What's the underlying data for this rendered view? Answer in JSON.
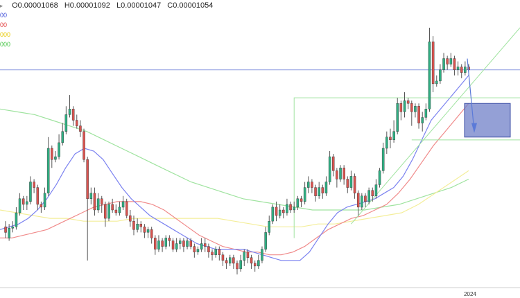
{
  "header": {
    "open_label": "O",
    "open": "0.00001068",
    "high_label": "H",
    "high": "0.00001092",
    "low_label": "L",
    "low": "0.00001047",
    "close_label": "C",
    "close": "0.00001054"
  },
  "legend_lines": [
    {
      "text": "00",
      "color": "#3b4bd8"
    },
    {
      "text": "00",
      "color": "#e03a3a"
    },
    {
      "text": "000",
      "color": "#e6c800"
    },
    {
      "text": "000",
      "color": "#3cc23c"
    }
  ],
  "colors": {
    "up": "#2fae82",
    "down": "#d9534f",
    "ma_fast": "#7b82f0",
    "ma_mid": "#f08a8a",
    "ma_yellow": "#f4ee9a",
    "ma_slow": "#9fe39f",
    "hline": "#8d9be0",
    "level": "#9fe39f",
    "trend": "#9fe39f",
    "zone_fill": "#7080c8",
    "zone_stroke": "#3d4fa6",
    "arrow": "#5b7ad8"
  },
  "chart_data": {
    "type": "candlestick",
    "xlabel": "",
    "ylabel": "",
    "x_tick_labels": [
      "2024"
    ],
    "candles_ohlc": [
      [
        0.74,
        0.72,
        0.76,
        0.7
      ],
      [
        0.7,
        0.735,
        0.75,
        0.69
      ],
      [
        0.735,
        0.74,
        0.76,
        0.72
      ],
      [
        0.74,
        0.79,
        0.81,
        0.73
      ],
      [
        0.79,
        0.84,
        0.86,
        0.78
      ],
      [
        0.84,
        0.82,
        0.85,
        0.8
      ],
      [
        0.82,
        0.83,
        0.85,
        0.8
      ],
      [
        0.83,
        0.9,
        0.92,
        0.82
      ],
      [
        0.9,
        0.88,
        0.91,
        0.86
      ],
      [
        0.88,
        0.82,
        0.89,
        0.8
      ],
      [
        0.82,
        0.81,
        0.83,
        0.79
      ],
      [
        0.81,
        0.86,
        0.88,
        0.8
      ],
      [
        0.86,
        1.02,
        1.06,
        0.85
      ],
      [
        1.02,
        0.98,
        1.03,
        0.95
      ],
      [
        0.98,
        0.99,
        1.01,
        0.97
      ],
      [
        0.99,
        1.04,
        1.07,
        0.98
      ],
      [
        1.04,
        1.08,
        1.11,
        1.03
      ],
      [
        1.08,
        1.14,
        1.17,
        1.07
      ],
      [
        1.14,
        1.16,
        1.21,
        1.13
      ],
      [
        1.16,
        1.12,
        1.17,
        1.1
      ],
      [
        1.12,
        1.1,
        1.14,
        1.09
      ],
      [
        1.1,
        1.08,
        1.12,
        1.06
      ],
      [
        1.08,
        0.98,
        1.09,
        0.97
      ],
      [
        0.98,
        0.84,
        0.99,
        0.62
      ],
      [
        0.84,
        0.86,
        0.88,
        0.82
      ],
      [
        0.86,
        0.8,
        0.88,
        0.78
      ],
      [
        0.8,
        0.84,
        0.86,
        0.79
      ],
      [
        0.84,
        0.82,
        0.85,
        0.79
      ],
      [
        0.82,
        0.77,
        0.83,
        0.74
      ],
      [
        0.77,
        0.82,
        0.83,
        0.76
      ],
      [
        0.82,
        0.8,
        0.84,
        0.79
      ],
      [
        0.8,
        0.79,
        0.82,
        0.78
      ],
      [
        0.79,
        0.81,
        0.83,
        0.78
      ],
      [
        0.81,
        0.83,
        0.85,
        0.8
      ],
      [
        0.83,
        0.78,
        0.84,
        0.77
      ],
      [
        0.78,
        0.76,
        0.8,
        0.74
      ],
      [
        0.76,
        0.73,
        0.78,
        0.71
      ],
      [
        0.73,
        0.75,
        0.77,
        0.72
      ],
      [
        0.75,
        0.74,
        0.76,
        0.72
      ],
      [
        0.74,
        0.72,
        0.75,
        0.7
      ],
      [
        0.72,
        0.73,
        0.74,
        0.7
      ],
      [
        0.73,
        0.7,
        0.74,
        0.68
      ],
      [
        0.7,
        0.66,
        0.71,
        0.64
      ],
      [
        0.66,
        0.69,
        0.71,
        0.65
      ],
      [
        0.69,
        0.67,
        0.7,
        0.65
      ],
      [
        0.67,
        0.7,
        0.71,
        0.66
      ],
      [
        0.7,
        0.69,
        0.71,
        0.67
      ],
      [
        0.69,
        0.66,
        0.7,
        0.65
      ],
      [
        0.66,
        0.68,
        0.7,
        0.65
      ],
      [
        0.68,
        0.69,
        0.7,
        0.66
      ],
      [
        0.69,
        0.67,
        0.7,
        0.65
      ],
      [
        0.67,
        0.69,
        0.7,
        0.66
      ],
      [
        0.69,
        0.67,
        0.7,
        0.66
      ],
      [
        0.67,
        0.65,
        0.68,
        0.63
      ],
      [
        0.65,
        0.66,
        0.67,
        0.64
      ],
      [
        0.66,
        0.68,
        0.7,
        0.65
      ],
      [
        0.68,
        0.67,
        0.7,
        0.65
      ],
      [
        0.67,
        0.65,
        0.68,
        0.63
      ],
      [
        0.65,
        0.64,
        0.66,
        0.62
      ],
      [
        0.64,
        0.66,
        0.67,
        0.63
      ],
      [
        0.66,
        0.64,
        0.67,
        0.62
      ],
      [
        0.64,
        0.62,
        0.65,
        0.6
      ],
      [
        0.62,
        0.61,
        0.63,
        0.59
      ],
      [
        0.61,
        0.63,
        0.64,
        0.6
      ],
      [
        0.63,
        0.61,
        0.64,
        0.59
      ],
      [
        0.61,
        0.59,
        0.62,
        0.57
      ],
      [
        0.59,
        0.62,
        0.64,
        0.58
      ],
      [
        0.62,
        0.65,
        0.66,
        0.6
      ],
      [
        0.65,
        0.63,
        0.66,
        0.61
      ],
      [
        0.63,
        0.61,
        0.64,
        0.59
      ],
      [
        0.61,
        0.6,
        0.62,
        0.58
      ],
      [
        0.6,
        0.62,
        0.64,
        0.59
      ],
      [
        0.62,
        0.66,
        0.67,
        0.61
      ],
      [
        0.66,
        0.72,
        0.74,
        0.65
      ],
      [
        0.72,
        0.76,
        0.78,
        0.71
      ],
      [
        0.76,
        0.81,
        0.82,
        0.75
      ],
      [
        0.81,
        0.78,
        0.83,
        0.76
      ],
      [
        0.78,
        0.8,
        0.82,
        0.77
      ],
      [
        0.8,
        0.79,
        0.81,
        0.77
      ],
      [
        0.79,
        0.82,
        0.84,
        0.78
      ],
      [
        0.82,
        0.8,
        0.83,
        0.79
      ],
      [
        0.8,
        0.81,
        0.83,
        0.79
      ],
      [
        0.81,
        0.84,
        0.85,
        0.8
      ],
      [
        0.84,
        0.83,
        0.85,
        0.81
      ],
      [
        0.83,
        0.88,
        0.9,
        0.82
      ],
      [
        0.88,
        0.9,
        0.92,
        0.86
      ],
      [
        0.9,
        0.88,
        0.91,
        0.86
      ],
      [
        0.88,
        0.85,
        0.89,
        0.83
      ],
      [
        0.85,
        0.88,
        0.9,
        0.84
      ],
      [
        0.88,
        0.86,
        0.89,
        0.84
      ],
      [
        0.86,
        0.9,
        0.92,
        0.85
      ],
      [
        0.9,
        0.99,
        1.01,
        0.89
      ],
      [
        0.99,
        0.94,
        1.0,
        0.92
      ],
      [
        0.94,
        0.91,
        0.95,
        0.88
      ],
      [
        0.91,
        0.95,
        0.96,
        0.9
      ],
      [
        0.95,
        0.91,
        0.96,
        0.89
      ],
      [
        0.91,
        0.88,
        0.92,
        0.86
      ],
      [
        0.88,
        0.92,
        0.94,
        0.87
      ],
      [
        0.92,
        0.86,
        0.93,
        0.84
      ],
      [
        0.86,
        0.81,
        0.87,
        0.78
      ],
      [
        0.81,
        0.85,
        0.86,
        0.8
      ],
      [
        0.85,
        0.83,
        0.86,
        0.81
      ],
      [
        0.83,
        0.87,
        0.88,
        0.82
      ],
      [
        0.87,
        0.85,
        0.88,
        0.83
      ],
      [
        0.85,
        0.89,
        0.91,
        0.84
      ],
      [
        0.89,
        0.94,
        0.95,
        0.88
      ],
      [
        0.94,
        1.02,
        1.04,
        0.93
      ],
      [
        1.02,
        1.06,
        1.08,
        1.0
      ],
      [
        1.06,
        1.05,
        1.09,
        1.02
      ],
      [
        1.05,
        1.08,
        1.12,
        1.04
      ],
      [
        1.08,
        1.18,
        1.2,
        1.07
      ],
      [
        1.18,
        1.15,
        1.19,
        1.12
      ],
      [
        1.15,
        1.19,
        1.22,
        1.13
      ],
      [
        1.19,
        1.18,
        1.2,
        1.16
      ],
      [
        1.18,
        1.15,
        1.19,
        1.1
      ],
      [
        1.15,
        1.17,
        1.18,
        1.13
      ],
      [
        1.17,
        1.11,
        1.18,
        1.09
      ],
      [
        1.11,
        1.13,
        1.15,
        1.08
      ],
      [
        1.13,
        1.16,
        1.18,
        1.12
      ],
      [
        1.16,
        1.4,
        1.45,
        1.15
      ],
      [
        1.4,
        1.25,
        1.42,
        1.22
      ],
      [
        1.25,
        1.26,
        1.28,
        1.24
      ],
      [
        1.26,
        1.3,
        1.32,
        1.25
      ],
      [
        1.3,
        1.34,
        1.36,
        1.29
      ],
      [
        1.34,
        1.32,
        1.35,
        1.3
      ],
      [
        1.32,
        1.34,
        1.36,
        1.31
      ],
      [
        1.34,
        1.3,
        1.35,
        1.28
      ],
      [
        1.3,
        1.31,
        1.33,
        1.28
      ],
      [
        1.31,
        1.29,
        1.32,
        1.27
      ],
      [
        1.29,
        1.31,
        1.33,
        1.28
      ],
      [
        1.31,
        1.3,
        1.32,
        1.28
      ]
    ],
    "moving_averages": {
      "fast": [
        0.73,
        0.74,
        0.75,
        0.77,
        0.8,
        0.84,
        0.89,
        0.95,
        1.0,
        1.02,
        1.01,
        0.98,
        0.93,
        0.88,
        0.84,
        0.81,
        0.78,
        0.76,
        0.74,
        0.72,
        0.7,
        0.68,
        0.67,
        0.66,
        0.66,
        0.66,
        0.66,
        0.65,
        0.64,
        0.63,
        0.62,
        0.62,
        0.62,
        0.65,
        0.7,
        0.75,
        0.79,
        0.81,
        0.82,
        0.83,
        0.84,
        0.86,
        0.88,
        0.92,
        0.98,
        1.05,
        1.12,
        1.16,
        1.2,
        1.24,
        1.28
      ],
      "mid": [
        0.7,
        0.7,
        0.71,
        0.72,
        0.73,
        0.75,
        0.77,
        0.79,
        0.81,
        0.82,
        0.83,
        0.83,
        0.83,
        0.82,
        0.8,
        0.77,
        0.74,
        0.71,
        0.69,
        0.67,
        0.66,
        0.65,
        0.65,
        0.64,
        0.64,
        0.65,
        0.67,
        0.7,
        0.73,
        0.75,
        0.77,
        0.78,
        0.8,
        0.82,
        0.86,
        0.91,
        0.97,
        1.03,
        1.08,
        1.13,
        1.18
      ],
      "yellow": [
        0.8,
        0.79,
        0.78,
        0.77,
        0.77,
        0.76,
        0.76,
        0.76,
        0.77,
        0.77,
        0.77,
        0.77,
        0.77,
        0.77,
        0.76,
        0.75,
        0.74,
        0.74,
        0.74,
        0.75,
        0.75,
        0.76,
        0.77,
        0.78,
        0.79,
        0.82,
        0.86,
        0.9,
        0.94
      ],
      "slow": [
        1.16,
        1.15,
        1.14,
        1.12,
        1.1,
        1.08,
        1.05,
        1.02,
        0.99,
        0.96,
        0.93,
        0.9,
        0.88,
        0.86,
        0.84,
        0.83,
        0.82,
        0.81,
        0.8,
        0.8,
        0.8,
        0.8,
        0.81,
        0.82,
        0.84,
        0.86,
        0.88,
        0.91
      ]
    },
    "horizontal_level": 1.3,
    "support_level_range": [
      1.05,
      1.2
    ],
    "projection_zone": [
      1.06,
      1.18
    ],
    "grid": false,
    "legend_position": "top-left"
  }
}
